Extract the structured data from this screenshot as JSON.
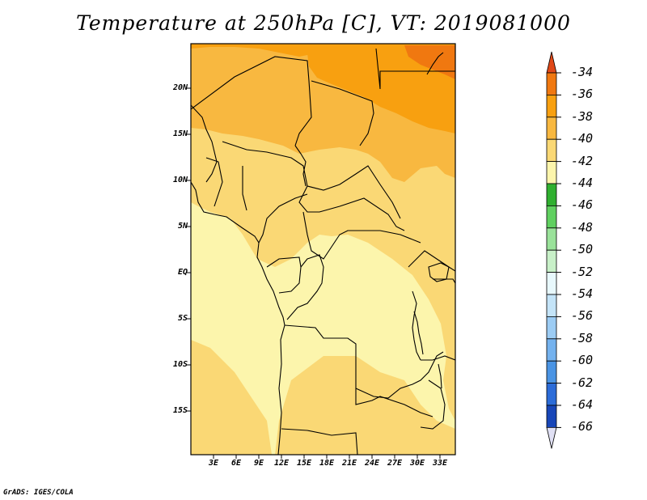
{
  "title": "Temperature at 250hPa [C], VT: 2019081000",
  "map": {
    "variable": "Temperature at 250hPa",
    "units": "C",
    "valid_time": "2019081000",
    "lon_range": [
      0,
      35
    ],
    "lat_range": [
      -20,
      25
    ],
    "y_ticks": [
      "20N",
      "15N",
      "10N",
      "5N",
      "EQ",
      "5S",
      "10S",
      "15S"
    ],
    "x_ticks": [
      "3E",
      "6E",
      "9E",
      "12E",
      "15E",
      "18E",
      "21E",
      "24E",
      "27E",
      "30E",
      "33E"
    ]
  },
  "colorbar": {
    "levels": [
      "-34",
      "-36",
      "-38",
      "-40",
      "-42",
      "-44",
      "-46",
      "-48",
      "-50",
      "-52",
      "-54",
      "-56",
      "-58",
      "-60",
      "-62",
      "-64",
      "-66"
    ],
    "colors": [
      "#e04818",
      "#f07810",
      "#f8a010",
      "#f8b840",
      "#fad875",
      "#fcf5ac",
      "#30b030",
      "#60d060",
      "#9ae29a",
      "#c8f0c8",
      "#e8f8fc",
      "#c4e4f8",
      "#9cccf4",
      "#74b2ee",
      "#4a94e4",
      "#2c6cd8",
      "#1846b8",
      "#0c1478",
      "#e0e0f4"
    ],
    "top_color": "#e04818",
    "bottom_color": "#e0e0f4"
  },
  "credit": "GrADS: IGES/COLA"
}
